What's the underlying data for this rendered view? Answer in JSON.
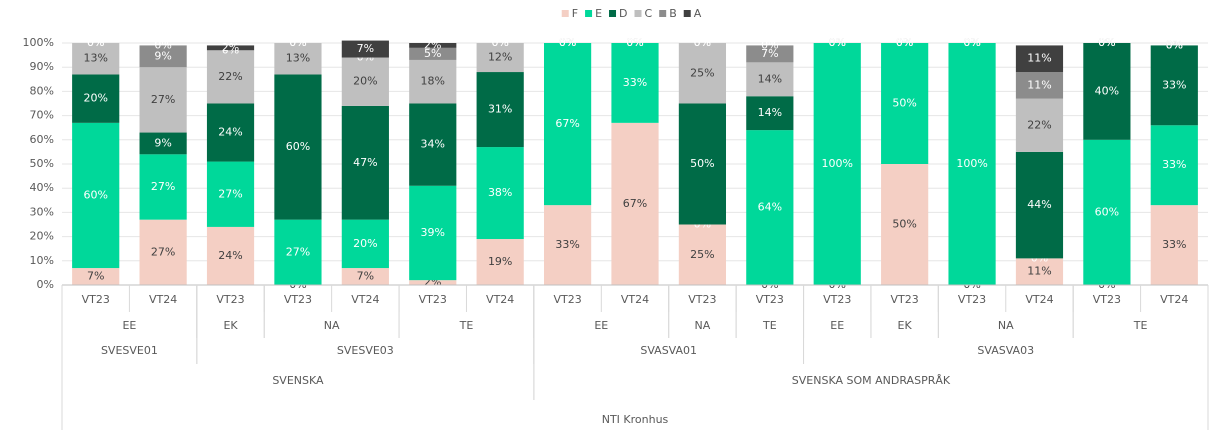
{
  "chart_data": {
    "type": "stacked_bar",
    "groups": [
      {
        "label": "NTI Kronhus",
        "children": [
          {
            "label": "SVENSKA",
            "children": [
              {
                "label": "SVESVE01",
                "children": [
                  {
                    "label": "EE",
                    "categories": [
                      "VT23",
                      "VT24"
                    ]
                  }
                ]
              },
              {
                "label": "SVESVE03",
                "children": [
                  {
                    "label": "EK",
                    "categories": [
                      "VT23"
                    ]
                  },
                  {
                    "label": "NA",
                    "categories": [
                      "VT23",
                      "VT24"
                    ]
                  },
                  {
                    "label": "TE",
                    "categories": [
                      "VT23",
                      "VT24"
                    ]
                  }
                ]
              }
            ]
          },
          {
            "label": "SVENSKA SOM ANDRASPRÅK",
            "children": [
              {
                "label": "SVASVA01",
                "children": [
                  {
                    "label": "EE",
                    "categories": [
                      "VT23",
                      "VT24"
                    ]
                  },
                  {
                    "label": "NA",
                    "categories": [
                      "VT23"
                    ]
                  },
                  {
                    "label": "TE",
                    "categories": [
                      "VT23"
                    ]
                  }
                ]
              },
              {
                "label": "SVASVA03",
                "children": [
                  {
                    "label": "EE",
                    "categories": [
                      "VT23"
                    ]
                  },
                  {
                    "label": "EK",
                    "categories": [
                      "VT23"
                    ]
                  },
                  {
                    "label": "NA",
                    "categories": [
                      "VT23",
                      "VT24"
                    ]
                  },
                  {
                    "label": "TE",
                    "categories": [
                      "VT23",
                      "VT24"
                    ]
                  }
                ]
              }
            ]
          }
        ]
      }
    ],
    "series": [
      {
        "name": "F",
        "color": "#f4cfc4",
        "label_color": "#404040",
        "values": [
          7,
          27,
          24,
          0,
          7,
          2,
          19,
          33,
          67,
          25,
          0,
          0,
          50,
          0,
          11,
          0,
          33
        ],
        "value_labels": [
          "7%",
          "27%",
          "24%",
          "0%",
          "7%",
          "2%",
          "19%",
          "33%",
          "67%",
          "25%",
          "0%",
          "0%",
          "50%",
          "0%",
          "11%",
          "0%",
          "33%"
        ]
      },
      {
        "name": "E",
        "color": "#00d89a",
        "label_color": "#ffffff",
        "values": [
          60,
          27,
          27,
          27,
          20,
          39,
          38,
          67,
          33,
          0,
          64,
          100,
          50,
          100,
          0,
          60,
          33
        ],
        "value_labels": [
          "60%",
          "27%",
          "27%",
          "27%",
          "20%",
          "39%",
          "38%",
          "67%",
          "33%",
          "0%",
          "64%",
          "100%",
          "50%",
          "100%",
          "0%",
          "60%",
          "33%"
        ]
      },
      {
        "name": "D",
        "color": "#006b47",
        "label_color": "#ffffff",
        "values": [
          20,
          9,
          24,
          60,
          47,
          34,
          31,
          0,
          0,
          50,
          14,
          0,
          0,
          0,
          44,
          40,
          33
        ],
        "value_labels": [
          "20%",
          "9%",
          "24%",
          "60%",
          "47%",
          "34%",
          "31%",
          "0%",
          "0%",
          "50%",
          "14%",
          "0%",
          "0%",
          "0%",
          "44%",
          "40%",
          "33%"
        ]
      },
      {
        "name": "C",
        "color": "#bfbfbf",
        "label_color": "#404040",
        "values": [
          13,
          27,
          22,
          13,
          20,
          18,
          12,
          0,
          0,
          25,
          14,
          0,
          0,
          0,
          22,
          0,
          0
        ],
        "value_labels": [
          "13%",
          "27%",
          "22%",
          "13%",
          "20%",
          "18%",
          "12%",
          "0%",
          "0%",
          "25%",
          "14%",
          "0%",
          "0%",
          "0%",
          "22%",
          "0%",
          "0%"
        ]
      },
      {
        "name": "B",
        "color": "#8c8c8c",
        "label_color": "#ffffff",
        "values": [
          0,
          9,
          0,
          0,
          0,
          5,
          0,
          0,
          0,
          0,
          7,
          0,
          0,
          0,
          11,
          0,
          0
        ],
        "value_labels": [
          "0%",
          "9%",
          "0%",
          "0%",
          "0%",
          "5%",
          "0%",
          "0%",
          "0%",
          "0%",
          "7%",
          "0%",
          "0%",
          "0%",
          "11%",
          "0%",
          "0%"
        ]
      },
      {
        "name": "A",
        "color": "#404040",
        "label_color": "#ffffff",
        "values": [
          0,
          0,
          2,
          0,
          7,
          2,
          0,
          0,
          0,
          0,
          0,
          0,
          0,
          0,
          11,
          0,
          0
        ],
        "value_labels": [
          "0%",
          "0%",
          "2%",
          "0%",
          "7%",
          "2%",
          "0%",
          "0%",
          "0%",
          "0%",
          "0%",
          "0%",
          "0%",
          "0%",
          "11%",
          "0%",
          "0%"
        ]
      }
    ],
    "ylim": [
      0,
      100
    ],
    "yticks": [
      {
        "value": 0,
        "label": "0%"
      },
      {
        "value": 10,
        "label": "10%"
      },
      {
        "value": 20,
        "label": "20%"
      },
      {
        "value": 30,
        "label": "30%"
      },
      {
        "value": 40,
        "label": "40%"
      },
      {
        "value": 50,
        "label": "50%"
      },
      {
        "value": 60,
        "label": "60%"
      },
      {
        "value": 70,
        "label": "70%"
      },
      {
        "value": 80,
        "label": "80%"
      },
      {
        "value": 90,
        "label": "90%"
      },
      {
        "value": 100,
        "label": "100%"
      }
    ],
    "grid": true,
    "legend": "top"
  }
}
